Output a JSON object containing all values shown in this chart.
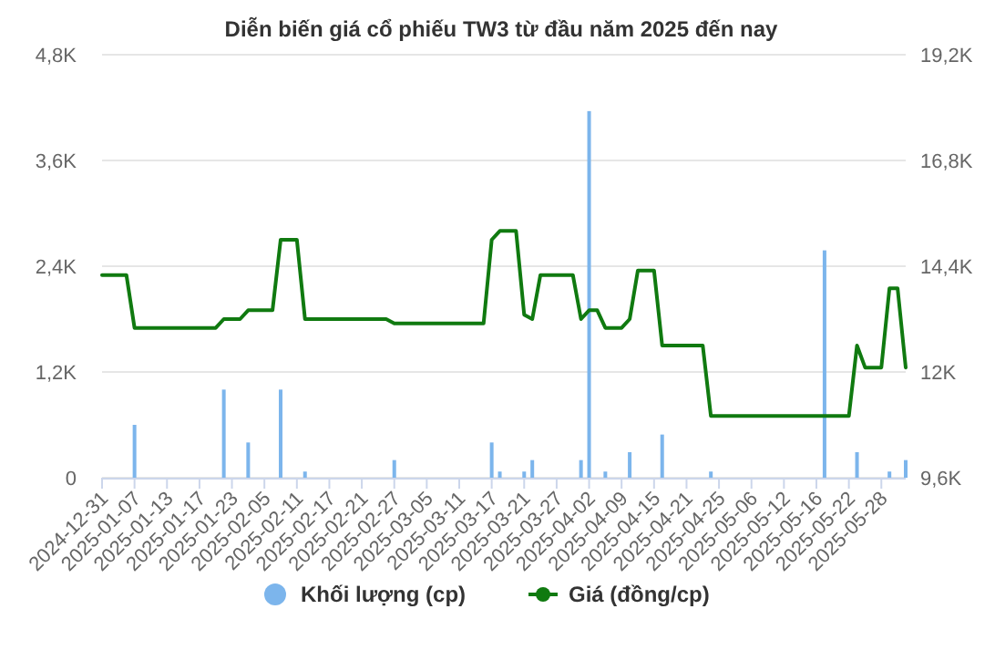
{
  "chart_data": {
    "type": "bar",
    "title": "Diễn biến giá cổ phiếu TW3 từ đầu năm 2025 đến nay",
    "categories": [
      "2024-12-31",
      null,
      null,
      null,
      "2025-01-07",
      null,
      null,
      null,
      "2025-01-13",
      null,
      null,
      null,
      "2025-01-17",
      null,
      null,
      null,
      "2025-01-23",
      null,
      null,
      null,
      "2025-02-05",
      null,
      null,
      null,
      "2025-02-11",
      null,
      null,
      null,
      "2025-02-17",
      null,
      null,
      null,
      "2025-02-21",
      null,
      null,
      null,
      "2025-02-27",
      null,
      null,
      null,
      "2025-03-05",
      null,
      null,
      null,
      "2025-03-11",
      null,
      null,
      null,
      "2025-03-17",
      null,
      null,
      null,
      "2025-03-21",
      null,
      null,
      null,
      "2025-03-27",
      null,
      null,
      null,
      "2025-04-02",
      null,
      null,
      null,
      "2025-04-09",
      null,
      null,
      null,
      "2025-04-15",
      null,
      null,
      null,
      "2025-04-21",
      null,
      null,
      null,
      "2025-04-25",
      null,
      null,
      null,
      "2025-05-06",
      null,
      null,
      null,
      "2025-05-12",
      null,
      null,
      null,
      "2025-05-16",
      null,
      null,
      null,
      "2025-05-22",
      null,
      null,
      null,
      "2025-05-28",
      null,
      null,
      null
    ],
    "series": [
      {
        "name": "Khối lượng (cp)",
        "color": "#7cb5ec",
        "values": [
          0,
          0,
          0,
          0,
          600,
          0,
          0,
          0,
          0,
          0,
          0,
          0,
          0,
          0,
          0,
          1000,
          0,
          0,
          400,
          0,
          0,
          0,
          1000,
          0,
          0,
          70,
          0,
          0,
          0,
          0,
          0,
          0,
          0,
          0,
          0,
          0,
          200,
          0,
          0,
          0,
          0,
          0,
          0,
          0,
          0,
          0,
          0,
          0,
          400,
          70,
          0,
          0,
          70,
          200,
          0,
          0,
          0,
          0,
          0,
          200,
          4160,
          0,
          70,
          0,
          0,
          290,
          0,
          0,
          0,
          490,
          0,
          0,
          0,
          0,
          0,
          70,
          0,
          0,
          0,
          0,
          0,
          0,
          0,
          0,
          0,
          0,
          0,
          0,
          0,
          2580,
          0,
          0,
          0,
          290,
          0,
          0,
          0,
          70,
          0,
          200
        ]
      },
      {
        "name": "Giá (đồng/cp)",
        "type": "line",
        "axis": "y2",
        "color": "#107a10",
        "values": [
          14200,
          14200,
          14200,
          14200,
          13000,
          13000,
          13000,
          13000,
          13000,
          13000,
          13000,
          13000,
          13000,
          13000,
          13000,
          13200,
          13200,
          13200,
          13400,
          13400,
          13400,
          13400,
          15000,
          15000,
          15000,
          13200,
          13200,
          13200,
          13200,
          13200,
          13200,
          13200,
          13200,
          13200,
          13200,
          13200,
          13100,
          13100,
          13100,
          13100,
          13100,
          13100,
          13100,
          13100,
          13100,
          13100,
          13100,
          13100,
          15000,
          15200,
          15200,
          15200,
          13300,
          13200,
          14200,
          14200,
          14200,
          14200,
          14200,
          13200,
          13400,
          13400,
          13000,
          13000,
          13000,
          13200,
          14300,
          14300,
          14300,
          12600,
          12600,
          12600,
          12600,
          12600,
          12600,
          11000,
          11000,
          11000,
          11000,
          11000,
          11000,
          11000,
          11000,
          11000,
          11000,
          11000,
          11000,
          11000,
          11000,
          11000,
          11000,
          11000,
          11000,
          12600,
          12100,
          12100,
          12100,
          13900,
          13900,
          12100
        ]
      }
    ],
    "ylim": [
      0,
      4800
    ],
    "yticks": [
      0,
      {
        "value": 1200,
        "label": "1,2K"
      },
      {
        "value": 2400,
        "label": "2,4K"
      },
      {
        "value": 3600,
        "label": "3,6K"
      },
      {
        "value": 4800,
        "label": "4,8K"
      }
    ],
    "y2lim": [
      9600,
      19200
    ],
    "y2ticks": [
      {
        "value": 9600,
        "label": "9,6K"
      },
      {
        "value": 12000,
        "label": "12K"
      },
      {
        "value": 14400,
        "label": "14,4K"
      },
      {
        "value": 16800,
        "label": "16,8K"
      },
      {
        "value": 19200,
        "label": "19,2K"
      }
    ],
    "grid": "y",
    "legend": "bottom"
  }
}
